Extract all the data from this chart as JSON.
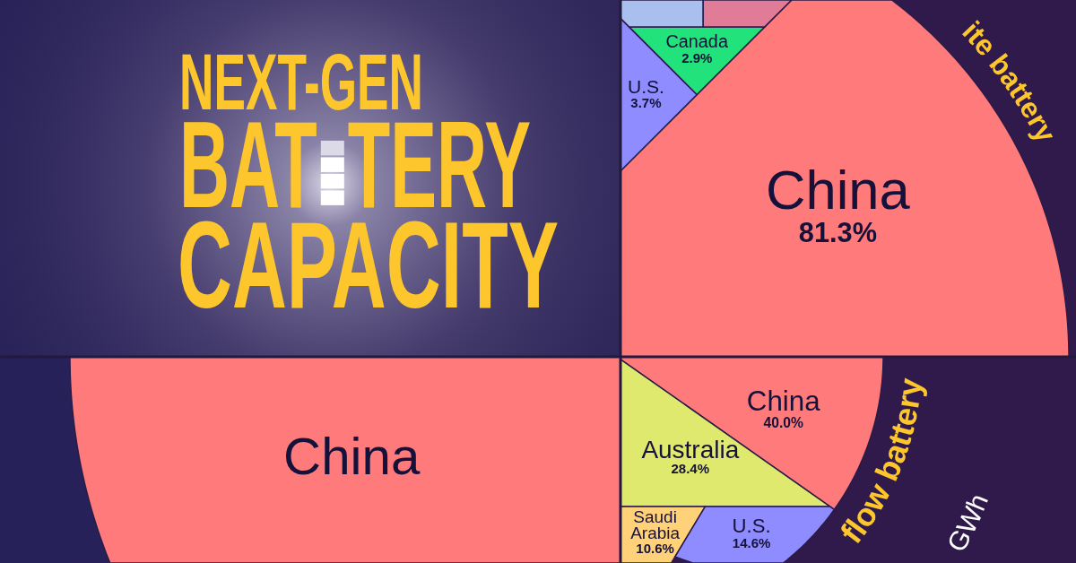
{
  "chart_data": [
    {
      "type": "other",
      "title": "NEXT-GEN BATTERY CAPACITY"
    },
    {
      "type": "other",
      "title": "ite battery",
      "categories": [
        "China",
        "U.S.",
        "Canada",
        null,
        null
      ],
      "values": [
        81.3,
        3.7,
        2.9,
        null,
        null
      ],
      "value_labels": [
        "81.3%",
        "3.7%",
        "2.9%",
        null,
        null
      ],
      "colors": [
        "#ff7b7b",
        "#8e8cff",
        "#22e27c",
        "#a9c0ee",
        "#e07c98"
      ]
    },
    {
      "type": "other",
      "categories": [
        "China"
      ],
      "colors": [
        "#ff7b7b"
      ]
    },
    {
      "type": "other",
      "title": "flow battery",
      "subtitle": "GWh",
      "categories": [
        "China",
        "Australia",
        "Saudi Arabia",
        "U.S."
      ],
      "values": [
        40.0,
        28.4,
        10.6,
        14.6
      ],
      "value_labels": [
        "40.0%",
        "28.4%",
        "10.6%",
        "14.6%"
      ],
      "colors": [
        "#ff7b7b",
        "#dfe96e",
        "#ffd27a",
        "#8e8cff"
      ]
    }
  ]
}
